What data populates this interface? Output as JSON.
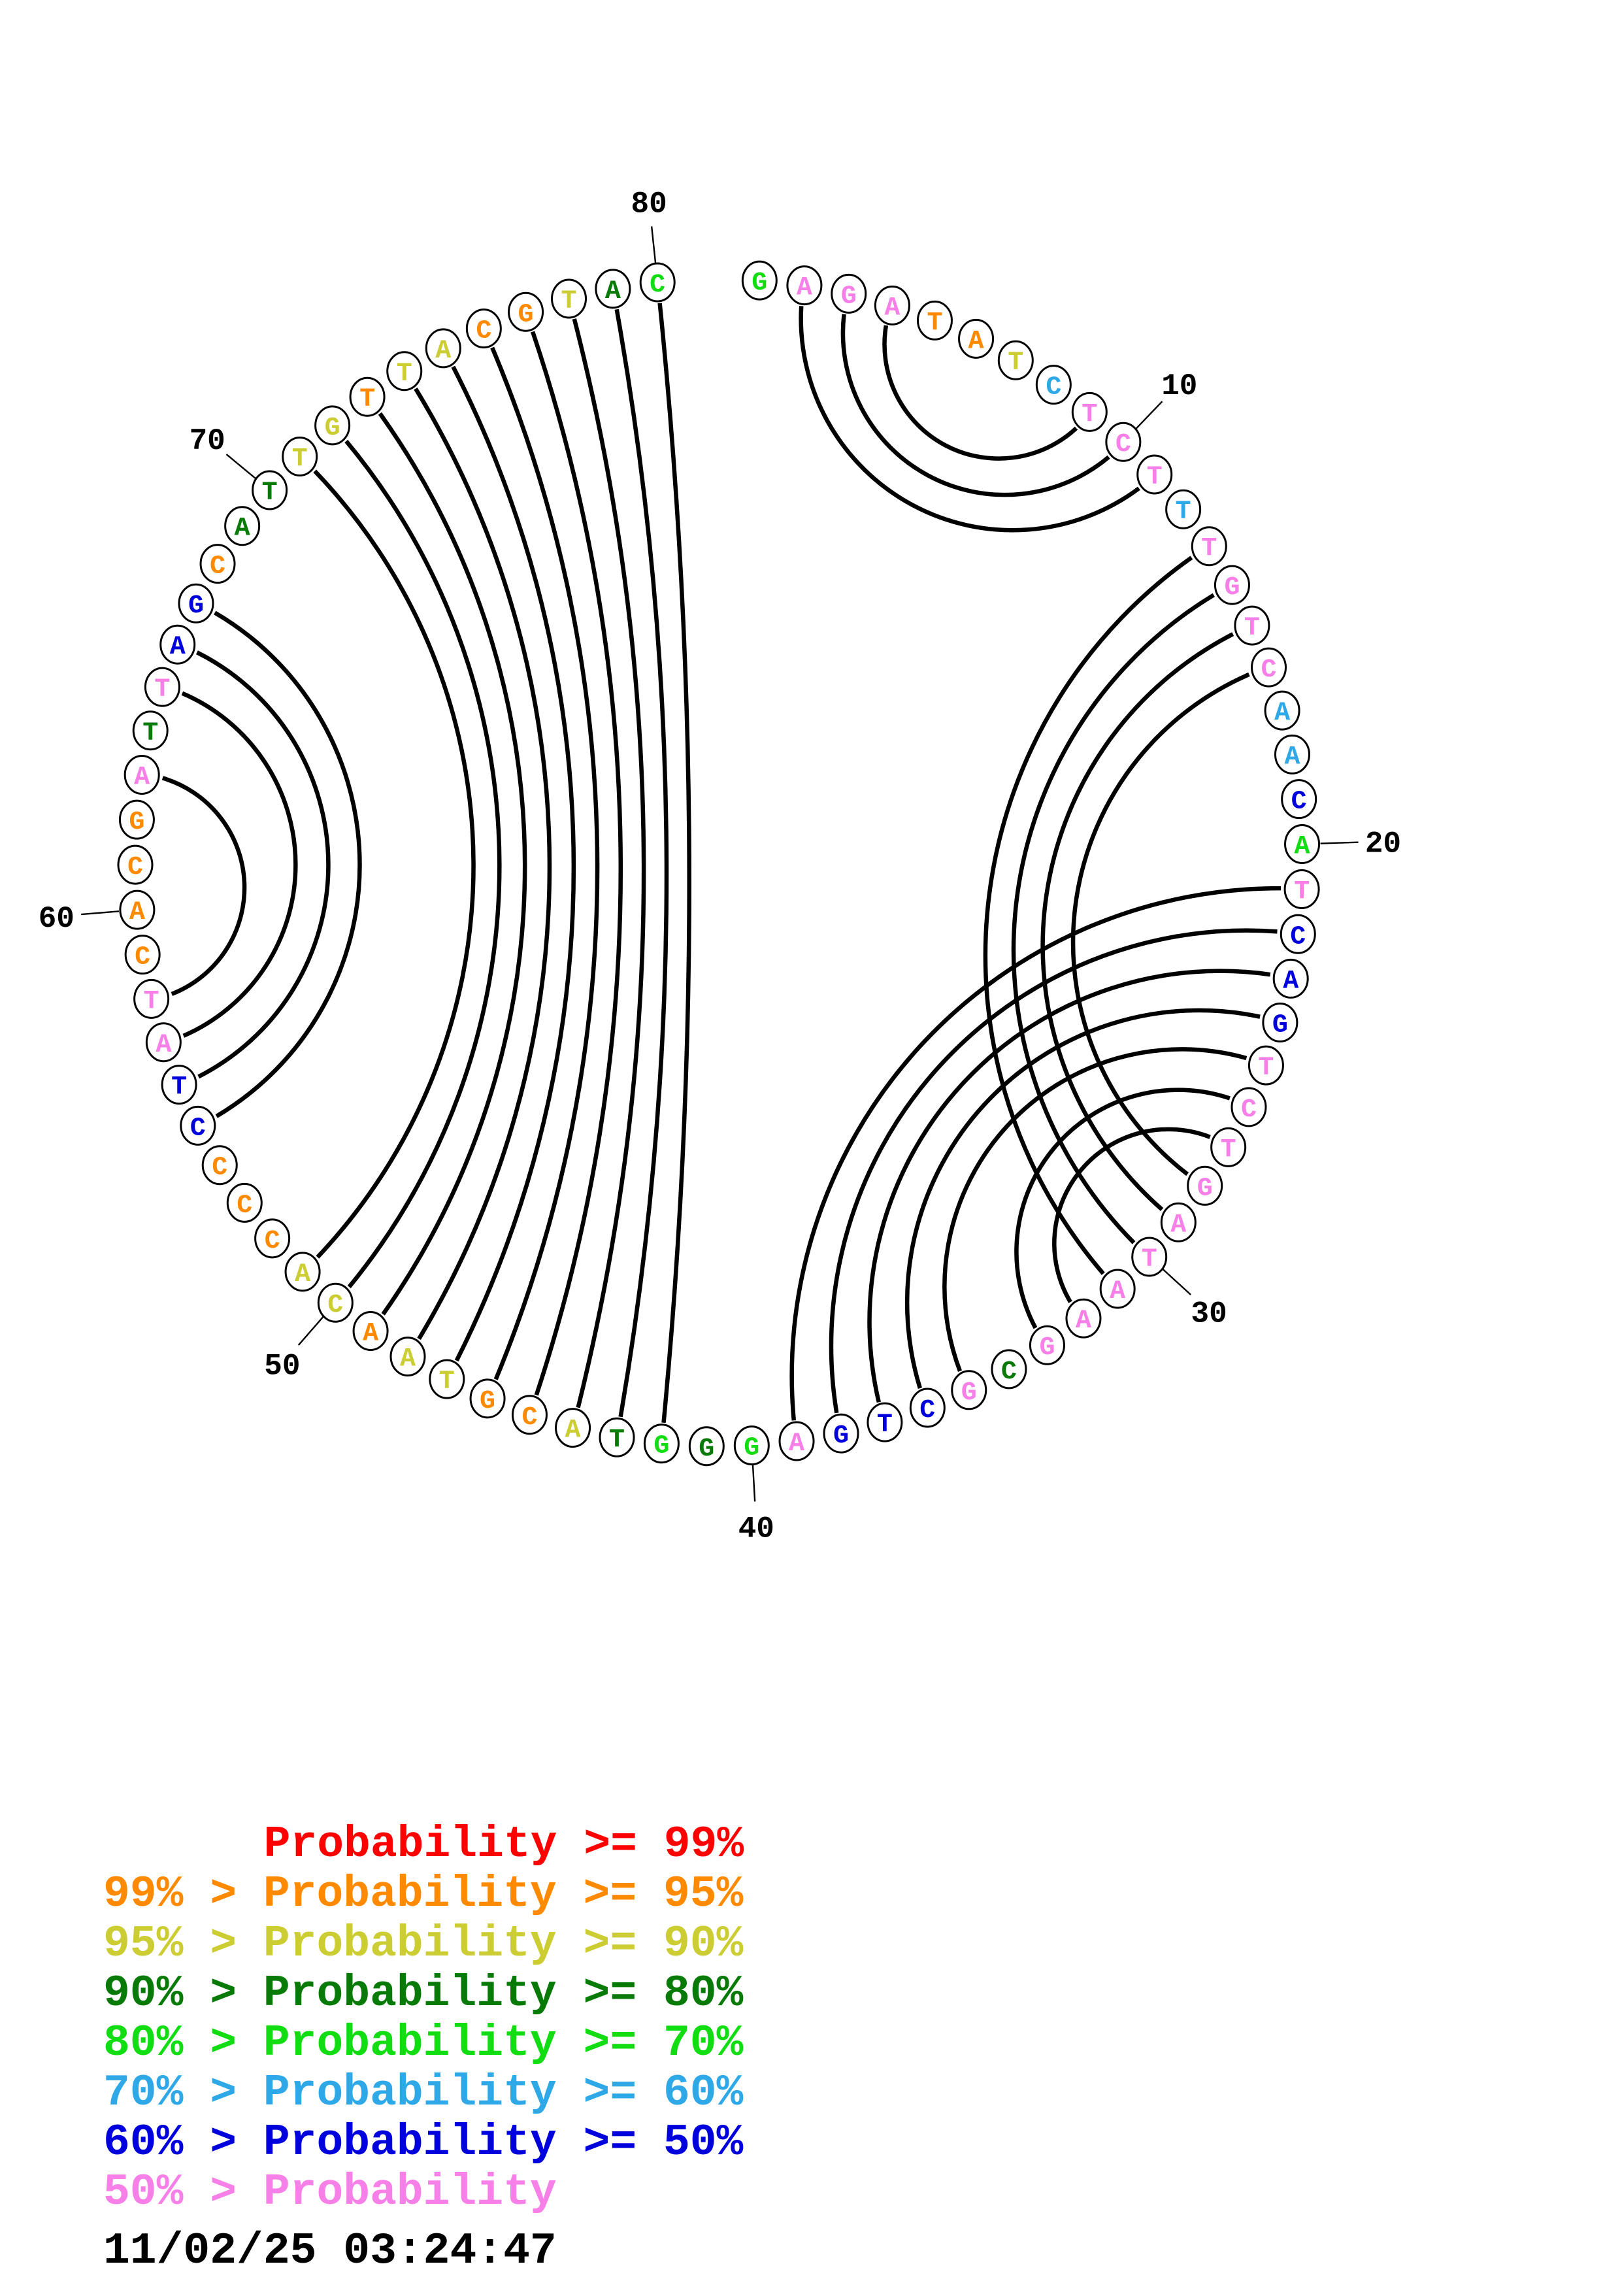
{
  "plot": {
    "type": "circular-basepair-probability-plot",
    "sequence": "GAGATATCTCTTTGTCAACATCAGTCTGATAAGCGCTGAGGGTACGTAACACCCCTATCACGATTAGCATTGTTACGTAC",
    "length": 80,
    "nucleotide_color_classes": [
      "green",
      "pink",
      "pink",
      "pink",
      "orange",
      "orange",
      "yellow",
      "lblue",
      "pink",
      "pink",
      "pink",
      "lblue",
      "pink",
      "pink",
      "pink",
      "pink",
      "lblue",
      "lblue",
      "blue",
      "green",
      "pink",
      "blue",
      "blue",
      "blue",
      "pink",
      "pink",
      "pink",
      "pink",
      "pink",
      "pink",
      "pink",
      "pink",
      "pink",
      "dgreen",
      "pink",
      "blue",
      "blue",
      "blue",
      "pink",
      "green",
      "dgreen",
      "green",
      "dgreen",
      "yellow",
      "orange",
      "orange",
      "yellow",
      "yellow",
      "orange",
      "yellow",
      "yellow",
      "orange",
      "orange",
      "orange",
      "blue",
      "blue",
      "pink",
      "pink",
      "orange",
      "orange",
      "orange",
      "orange",
      "pink",
      "dgreen",
      "pink",
      "blue",
      "blue",
      "orange",
      "dgreen",
      "dgreen",
      "yellow",
      "yellow",
      "orange",
      "yellow",
      "yellow",
      "orange",
      "orange",
      "yellow",
      "dgreen",
      "green"
    ],
    "pairs": [
      [
        2,
        11
      ],
      [
        3,
        10
      ],
      [
        4,
        9
      ],
      [
        13,
        31
      ],
      [
        14,
        30
      ],
      [
        15,
        29
      ],
      [
        16,
        28
      ],
      [
        21,
        39
      ],
      [
        22,
        38
      ],
      [
        23,
        37
      ],
      [
        24,
        36
      ],
      [
        25,
        35
      ],
      [
        26,
        33
      ],
      [
        27,
        32
      ],
      [
        42,
        80
      ],
      [
        43,
        79
      ],
      [
        44,
        78
      ],
      [
        45,
        77
      ],
      [
        46,
        76
      ],
      [
        47,
        75
      ],
      [
        48,
        74
      ],
      [
        49,
        73
      ],
      [
        50,
        72
      ],
      [
        51,
        71
      ],
      [
        55,
        67
      ],
      [
        56,
        66
      ],
      [
        57,
        65
      ],
      [
        58,
        63
      ]
    ],
    "position_labels": [
      10,
      20,
      30,
      40,
      50,
      60,
      70,
      80
    ]
  },
  "colors": {
    "red": "#FF0000",
    "orange": "#FF8A00",
    "yellow": "#CCCC33",
    "dgreen": "#077A07",
    "green": "#12DD12",
    "lblue": "#2FA8E8",
    "blue": "#0000DD",
    "pink": "#F77FE8",
    "arc": "#000000",
    "circle_outline": "#000000",
    "label_text": "#000000"
  },
  "legend": {
    "rows": [
      {
        "text": "Probability >= 99%",
        "color": "red",
        "indent": 6
      },
      {
        "text": "99% > Probability >= 95%",
        "color": "orange",
        "indent": 0
      },
      {
        "text": "95% > Probability >= 90%",
        "color": "yellow",
        "indent": 0
      },
      {
        "text": "90% > Probability >= 80%",
        "color": "dgreen",
        "indent": 0
      },
      {
        "text": "80% > Probability >= 70%",
        "color": "green",
        "indent": 0
      },
      {
        "text": "70% > Probability >= 60%",
        "color": "lblue",
        "indent": 0
      },
      {
        "text": "60% > Probability >= 50%",
        "color": "blue",
        "indent": 0
      },
      {
        "text": "50% > Probability",
        "color": "pink",
        "indent": 0
      }
    ]
  },
  "timestamp": "11/02/25 03:24:47"
}
